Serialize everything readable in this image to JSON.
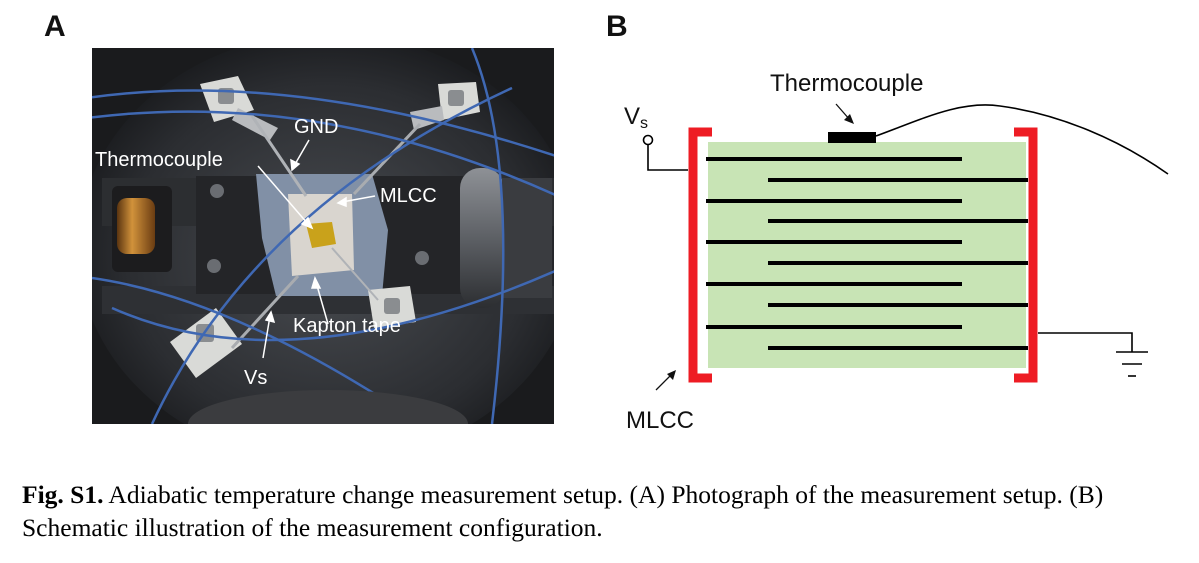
{
  "panels": {
    "a": {
      "letter": "A"
    },
    "b": {
      "letter": "B"
    }
  },
  "photo": {
    "labels": {
      "gnd": "GND",
      "thermocouple": "Thermocouple",
      "mlcc": "MLCC",
      "kapton": "Kapton tape",
      "vs": "Vs"
    }
  },
  "schematic": {
    "thermocouple_label": "Thermocouple",
    "vs_main": "V",
    "vs_sub": "s",
    "mlcc_label": "MLCC",
    "colors": {
      "body": "#c8e4b5",
      "electrode": "#ee1c24",
      "wire": "#000000"
    }
  },
  "caption": {
    "label": "Fig. S1.",
    "text": " Adiabatic temperature change measurement setup. (A) Photograph of the measurement setup. (B) Schematic illustration of the measurement configuration."
  }
}
